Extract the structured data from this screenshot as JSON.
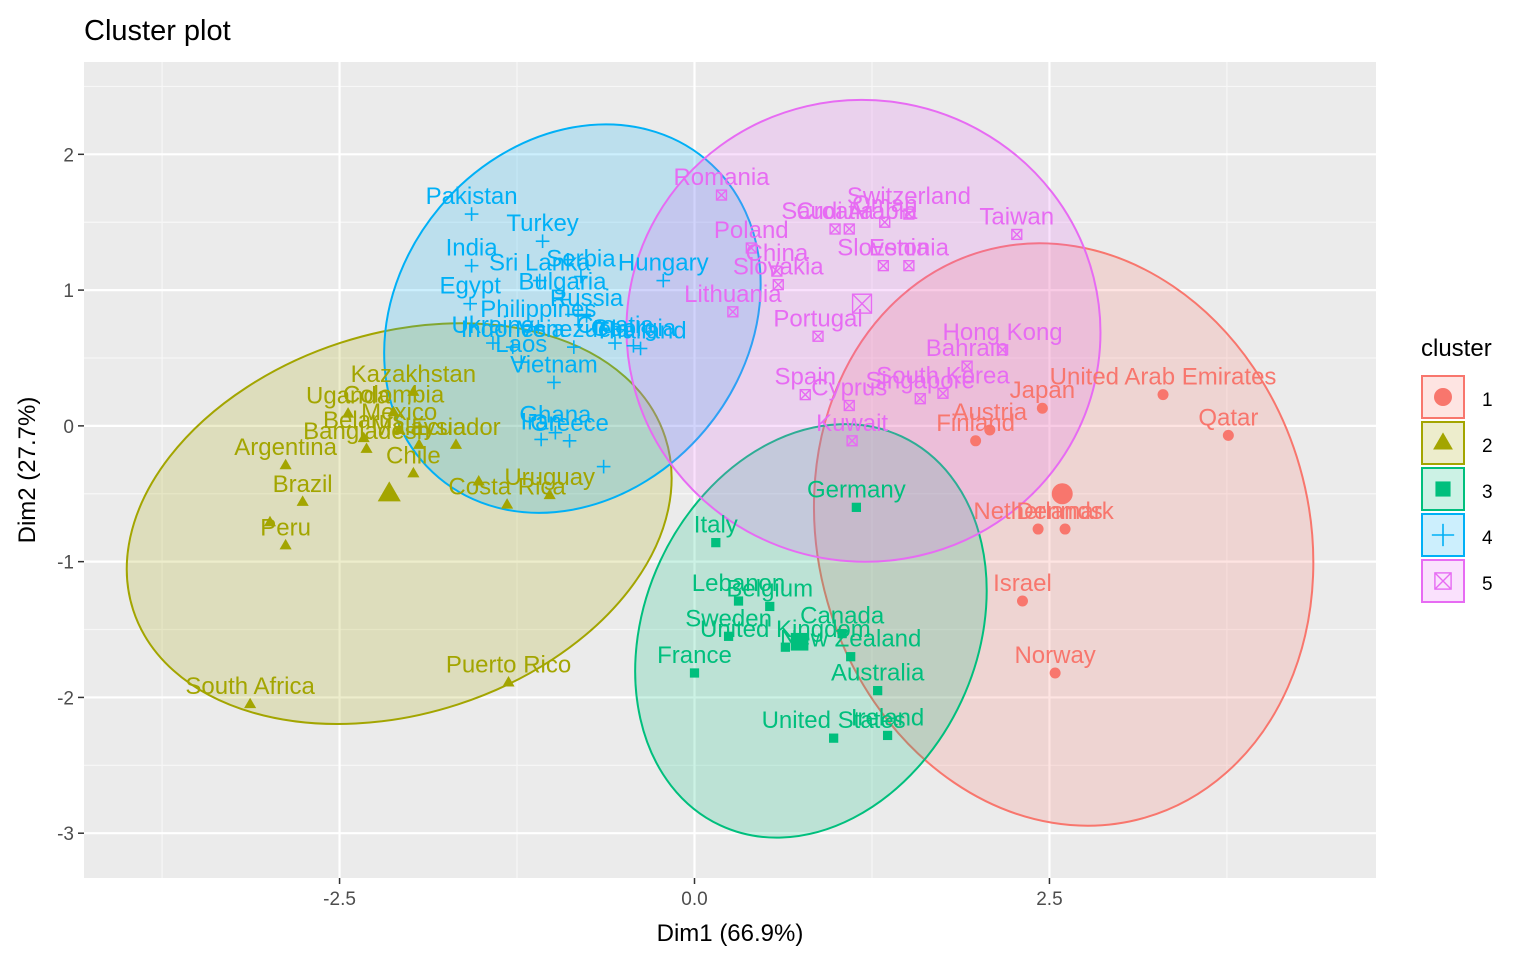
{
  "chart_data": {
    "type": "scatter",
    "title": "Cluster plot",
    "xlabel": "Dim1 (66.9%)",
    "ylabel": "Dim2 (27.7%)",
    "xlim": [
      -4.3,
      4.8
    ],
    "ylim": [
      -3.33,
      2.68
    ],
    "x_ticks": [
      -2.5,
      0.0,
      2.5
    ],
    "x_tick_labels": [
      "-2.5",
      "0.0",
      "2.5"
    ],
    "y_ticks": [
      -3,
      -2,
      -1,
      0,
      1,
      2
    ],
    "y_tick_labels": [
      "-3",
      "-2",
      "-1",
      "0",
      "1",
      "2"
    ],
    "grid": true,
    "legend": {
      "title": "cluster",
      "position": "right"
    },
    "series": [
      {
        "name": "1",
        "color": "#F8766D",
        "shape": "circle",
        "ellipse": {
          "cx": 2.6,
          "cy": -0.8,
          "rx": 1.73,
          "ry": 2.17,
          "angle": 16
        },
        "centroid": {
          "x": 2.59,
          "y": -0.5
        },
        "points": [
          {
            "label": "United Arab Emirates",
            "x": 3.3,
            "y": 0.23
          },
          {
            "label": "Qatar",
            "x": 3.76,
            "y": -0.07
          },
          {
            "label": "Japan",
            "x": 2.45,
            "y": 0.13
          },
          {
            "label": "Austria",
            "x": 2.08,
            "y": -0.03
          },
          {
            "label": "Finland",
            "x": 1.98,
            "y": -0.11
          },
          {
            "label": "Netherlands",
            "x": 2.42,
            "y": -0.76
          },
          {
            "label": "Denmark",
            "x": 2.61,
            "y": -0.76
          },
          {
            "label": "Israel",
            "x": 2.31,
            "y": -1.29
          },
          {
            "label": "Norway",
            "x": 2.54,
            "y": -1.82
          }
        ]
      },
      {
        "name": "2",
        "color": "#A3A500",
        "shape": "triangle",
        "ellipse": {
          "cx": -2.08,
          "cy": -0.72,
          "rx": 1.97,
          "ry": 1.4,
          "angle": 18
        },
        "centroid": {
          "x": -2.15,
          "y": -0.5
        },
        "points": [
          {
            "label": "Kazakhstan",
            "x": -1.98,
            "y": 0.25
          },
          {
            "label": "Colombia",
            "x": -2.12,
            "y": 0.1
          },
          {
            "label": "Uganda",
            "x": -2.44,
            "y": 0.09
          },
          {
            "label": "Mexico",
            "x": -2.08,
            "y": -0.03
          },
          {
            "label": "Belarus",
            "x": -2.33,
            "y": -0.09
          },
          {
            "label": "Malaysia",
            "x": -1.94,
            "y": -0.14
          },
          {
            "label": "Bangladesh",
            "x": -2.31,
            "y": -0.17
          },
          {
            "label": "Ecuador",
            "x": -1.68,
            "y": -0.14
          },
          {
            "label": "Argentina",
            "x": -2.88,
            "y": -0.29
          },
          {
            "label": "Chile",
            "x": -1.98,
            "y": -0.35
          },
          {
            "label": "Uruguay",
            "x": -1.02,
            "y": -0.51
          },
          {
            "label": "Costa Rica",
            "x": -1.32,
            "y": -0.58
          },
          {
            "label": "Brazil",
            "x": -2.76,
            "y": -0.56
          },
          {
            "label": "Peru",
            "x": -2.88,
            "y": -0.88
          },
          {
            "label": "",
            "x": -2.99,
            "y": -0.71
          },
          {
            "label": "",
            "x": -1.52,
            "y": -0.41
          },
          {
            "label": "Puerto Rico",
            "x": -1.31,
            "y": -1.89
          },
          {
            "label": "South Africa",
            "x": -3.13,
            "y": -2.05
          }
        ]
      },
      {
        "name": "3",
        "color": "#00BF7D",
        "shape": "square",
        "ellipse": {
          "cx": 0.82,
          "cy": -1.51,
          "rx": 1.17,
          "ry": 1.58,
          "angle": -25
        },
        "centroid": {
          "x": 0.74,
          "y": -1.59
        },
        "points": [
          {
            "label": "Germany",
            "x": 1.14,
            "y": -0.6
          },
          {
            "label": "Italy",
            "x": 0.15,
            "y": -0.86
          },
          {
            "label": "Lebanon",
            "x": 0.31,
            "y": -1.29
          },
          {
            "label": "Belgium",
            "x": 0.53,
            "y": -1.33
          },
          {
            "label": "Canada",
            "x": 1.04,
            "y": -1.53
          },
          {
            "label": "Sweden",
            "x": 0.24,
            "y": -1.55
          },
          {
            "label": "United Kingdom",
            "x": 0.64,
            "y": -1.63
          },
          {
            "label": "New Zealand",
            "x": 1.1,
            "y": -1.7
          },
          {
            "label": "France",
            "x": 0.0,
            "y": -1.82
          },
          {
            "label": "Australia",
            "x": 1.29,
            "y": -1.95
          },
          {
            "label": "United States",
            "x": 0.98,
            "y": -2.3
          },
          {
            "label": "Ireland",
            "x": 1.36,
            "y": -2.28
          }
        ]
      },
      {
        "name": "4",
        "color": "#00B0F6",
        "shape": "plus",
        "ellipse": {
          "cx": -0.86,
          "cy": 0.79,
          "rx": 1.22,
          "ry": 1.53,
          "angle": -40
        },
        "centroid": {
          "x": -0.82,
          "y": 0.82
        },
        "points": [
          {
            "label": "Pakistan",
            "x": -1.57,
            "y": 1.56
          },
          {
            "label": "Turkey",
            "x": -1.07,
            "y": 1.36
          },
          {
            "label": "India",
            "x": -1.57,
            "y": 1.18
          },
          {
            "label": "Sri Lanka",
            "x": -1.09,
            "y": 1.07
          },
          {
            "label": "Serbia",
            "x": -0.8,
            "y": 1.1
          },
          {
            "label": "Hungary",
            "x": -0.22,
            "y": 1.07
          },
          {
            "label": "Bulgaria",
            "x": -0.93,
            "y": 0.93
          },
          {
            "label": "Egypt",
            "x": -1.58,
            "y": 0.9
          },
          {
            "label": "Russia",
            "x": -0.76,
            "y": 0.81
          },
          {
            "label": "Philippines",
            "x": -1.1,
            "y": 0.73
          },
          {
            "label": "Ukraine",
            "x": -1.42,
            "y": 0.61
          },
          {
            "label": "Indonesia",
            "x": -1.28,
            "y": 0.58
          },
          {
            "label": "Venezuela",
            "x": -0.85,
            "y": 0.58
          },
          {
            "label": "Croatia",
            "x": -0.56,
            "y": 0.61
          },
          {
            "label": "Georgia",
            "x": -0.43,
            "y": 0.59
          },
          {
            "label": "Laos",
            "x": -1.22,
            "y": 0.47
          },
          {
            "label": "Thailand",
            "x": -0.38,
            "y": 0.57
          },
          {
            "label": "Vietnam",
            "x": -0.99,
            "y": 0.32
          },
          {
            "label": "Ghana",
            "x": -0.98,
            "y": -0.05
          },
          {
            "label": "Iran",
            "x": -1.08,
            "y": -0.1
          },
          {
            "label": "Greece",
            "x": -0.88,
            "y": -0.11
          },
          {
            "label": "",
            "x": -0.64,
            "y": -0.3
          }
        ]
      },
      {
        "name": "5",
        "color": "#E76BF3",
        "shape": "boxtimes",
        "ellipse": {
          "cx": 1.19,
          "cy": 0.7,
          "rx": 1.67,
          "ry": 1.7,
          "angle": -8
        },
        "centroid": {
          "x": 1.18,
          "y": 0.9
        },
        "points": [
          {
            "label": "Romania",
            "x": 0.19,
            "y": 1.7
          },
          {
            "label": "Switzerland",
            "x": 1.51,
            "y": 1.56
          },
          {
            "label": "Oman",
            "x": 1.34,
            "y": 1.5
          },
          {
            "label": "Saudi Arabia",
            "x": 1.09,
            "y": 1.45
          },
          {
            "label": "Croatia",
            "x": 0.99,
            "y": 1.45
          },
          {
            "label": "Taiwan",
            "x": 2.27,
            "y": 1.41
          },
          {
            "label": "Poland",
            "x": 0.4,
            "y": 1.31
          },
          {
            "label": "China",
            "x": 0.58,
            "y": 1.14
          },
          {
            "label": "Slovenia",
            "x": 1.33,
            "y": 1.18
          },
          {
            "label": "Estonia",
            "x": 1.51,
            "y": 1.18
          },
          {
            "label": "Slovakia",
            "x": 0.59,
            "y": 1.04
          },
          {
            "label": "Lithuania",
            "x": 0.27,
            "y": 0.84
          },
          {
            "label": "Portugal",
            "x": 0.87,
            "y": 0.66
          },
          {
            "label": "Hong Kong",
            "x": 2.17,
            "y": 0.56
          },
          {
            "label": "Bahrain",
            "x": 1.92,
            "y": 0.44
          },
          {
            "label": "South Korea",
            "x": 1.75,
            "y": 0.24
          },
          {
            "label": "Spain",
            "x": 0.78,
            "y": 0.23
          },
          {
            "label": "Cyprus",
            "x": 1.09,
            "y": 0.15
          },
          {
            "label": "Singapore",
            "x": 1.59,
            "y": 0.2
          },
          {
            "label": "Kuwait",
            "x": 1.11,
            "y": -0.11
          }
        ]
      }
    ]
  }
}
